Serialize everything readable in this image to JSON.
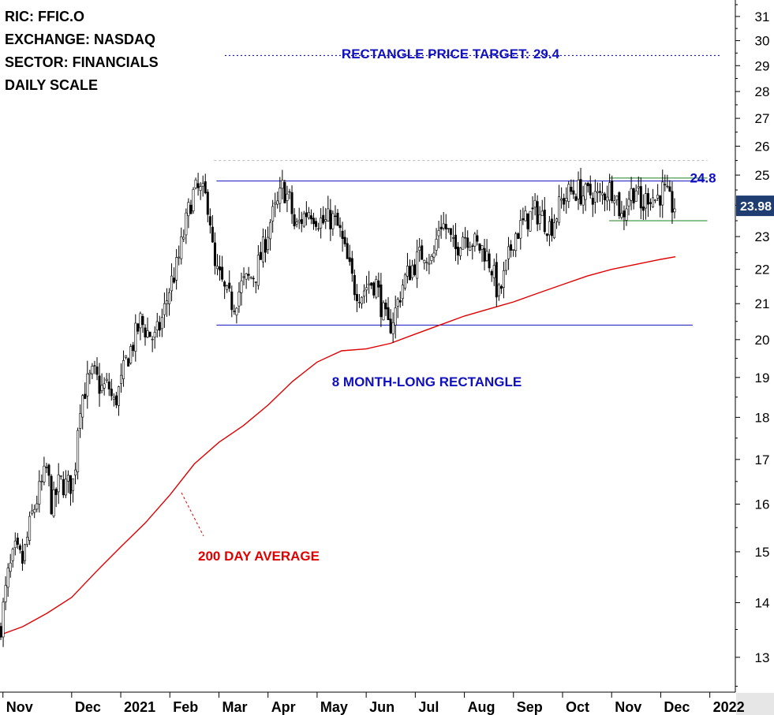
{
  "chart_data": {
    "type": "candlestick",
    "info_lines": [
      "RIC: FFIC.O",
      "EXCHANGE: NASDAQ",
      "SECTOR: FINANCIALS",
      "DAILY SCALE"
    ],
    "y_scale": "log",
    "ylim": [
      12.4,
      31.7
    ],
    "y_ticks": [
      13,
      14,
      15,
      16,
      17,
      18,
      19,
      20,
      21,
      22,
      23,
      24,
      25,
      26,
      27,
      28,
      29,
      30,
      31
    ],
    "x_tick_labels": [
      "Nov",
      "Dec",
      "2021",
      "Feb",
      "Mar",
      "Apr",
      "May",
      "Jun",
      "Jul",
      "Aug",
      "Sep",
      "Oct",
      "Nov",
      "Dec",
      "2022"
    ],
    "x_tick_positions": [
      -0.4,
      1.0,
      2.0,
      3.0,
      4.0,
      5.0,
      6.0,
      7.0,
      8.0,
      9.0,
      10.0,
      11.0,
      12.0,
      13.0,
      14.0
    ],
    "xlim": [
      -0.46,
      14.52
    ],
    "last_price": "23.98",
    "last_price_color": "#1f3d70",
    "colors": {
      "candle": "#000000",
      "average": "#e00000",
      "pattern": "#1010c0",
      "consolidation": "#208020",
      "annotation_blue": "#1010c0",
      "annotation_red": "#e00000"
    },
    "annotations": {
      "target_label": "RECTANGLE PRICE TARGET: 29.4",
      "target_price": 29.4,
      "rectangle_label": "8 MONTH-LONG RECTANGLE",
      "average_label": "200 DAY AVERAGE",
      "resistance_label": "24.8"
    },
    "rectangle": {
      "upper": 24.8,
      "lower": 20.4,
      "x_start": 3.95,
      "x_end": 13.65
    },
    "extra_dashed_level": 25.5,
    "consolidation": {
      "upper": 24.9,
      "lower": 23.5,
      "x_start": 11.95,
      "x_end": 13.95
    },
    "price_path": [
      [
        -0.46,
        13.5
      ],
      [
        -0.3,
        14.5
      ],
      [
        -0.15,
        15.0
      ],
      [
        0.0,
        14.8
      ],
      [
        0.2,
        15.8
      ],
      [
        0.35,
        16.3
      ],
      [
        0.5,
        16.8
      ],
      [
        0.6,
        15.9
      ],
      [
        0.75,
        16.5
      ],
      [
        0.9,
        16.4
      ],
      [
        1.05,
        16.5
      ],
      [
        1.15,
        18.3
      ],
      [
        1.3,
        18.8
      ],
      [
        1.45,
        19.1
      ],
      [
        1.6,
        18.7
      ],
      [
        1.75,
        18.8
      ],
      [
        1.85,
        18.3
      ],
      [
        2.0,
        18.8
      ],
      [
        2.1,
        19.4
      ],
      [
        2.25,
        19.9
      ],
      [
        2.4,
        20.5
      ],
      [
        2.55,
        20.2
      ],
      [
        2.7,
        20.0
      ],
      [
        2.85,
        20.6
      ],
      [
        3.0,
        21.5
      ],
      [
        3.15,
        22.1
      ],
      [
        3.3,
        23.2
      ],
      [
        3.45,
        24.3
      ],
      [
        3.55,
        24.5
      ],
      [
        3.7,
        24.3
      ],
      [
        3.8,
        24.0
      ],
      [
        3.9,
        22.0
      ],
      [
        4.0,
        21.8
      ],
      [
        4.15,
        21.2
      ],
      [
        4.3,
        21.0
      ],
      [
        4.45,
        21.5
      ],
      [
        4.6,
        21.7
      ],
      [
        4.75,
        21.9
      ],
      [
        4.9,
        22.6
      ],
      [
        5.05,
        23.5
      ],
      [
        5.2,
        24.0
      ],
      [
        5.3,
        24.6
      ],
      [
        5.45,
        24.1
      ],
      [
        5.55,
        23.2
      ],
      [
        5.7,
        23.6
      ],
      [
        5.85,
        23.9
      ],
      [
        6.0,
        23.6
      ],
      [
        6.15,
        23.4
      ],
      [
        6.3,
        23.6
      ],
      [
        6.45,
        23.2
      ],
      [
        6.6,
        22.3
      ],
      [
        6.75,
        21.5
      ],
      [
        6.9,
        21.3
      ],
      [
        7.05,
        21.6
      ],
      [
        7.2,
        21.6
      ],
      [
        7.35,
        20.7
      ],
      [
        7.45,
        20.3
      ],
      [
        7.6,
        20.8
      ],
      [
        7.75,
        21.6
      ],
      [
        7.9,
        22.0
      ],
      [
        8.05,
        22.3
      ],
      [
        8.2,
        22.6
      ],
      [
        8.35,
        22.2
      ],
      [
        8.5,
        23.5
      ],
      [
        8.65,
        23.2
      ],
      [
        8.8,
        22.5
      ],
      [
        8.95,
        23.1
      ],
      [
        9.1,
        23.0
      ],
      [
        9.25,
        22.7
      ],
      [
        9.4,
        22.6
      ],
      [
        9.55,
        22.1
      ],
      [
        9.7,
        21.2
      ],
      [
        9.85,
        22.0
      ],
      [
        10.0,
        23.0
      ],
      [
        10.15,
        23.3
      ],
      [
        10.3,
        23.6
      ],
      [
        10.45,
        23.8
      ],
      [
        10.6,
        23.6
      ],
      [
        10.75,
        23.3
      ],
      [
        10.9,
        23.8
      ],
      [
        11.0,
        24.2
      ],
      [
        11.15,
        24.4
      ],
      [
        11.3,
        24.5
      ],
      [
        11.45,
        24.3
      ],
      [
        11.6,
        24.4
      ],
      [
        11.75,
        24.2
      ],
      [
        11.9,
        24.5
      ],
      [
        12.05,
        24.6
      ],
      [
        12.2,
        23.6
      ],
      [
        12.35,
        24.3
      ],
      [
        12.5,
        24.6
      ],
      [
        12.6,
        23.8
      ],
      [
        12.75,
        24.4
      ],
      [
        12.9,
        24.2
      ],
      [
        13.05,
        24.5
      ],
      [
        13.2,
        24.0
      ],
      [
        13.32,
        23.98
      ]
    ],
    "moving_average": [
      [
        -0.46,
        13.4
      ],
      [
        0.0,
        13.55
      ],
      [
        0.5,
        13.8
      ],
      [
        1.0,
        14.1
      ],
      [
        1.5,
        14.6
      ],
      [
        2.0,
        15.1
      ],
      [
        2.5,
        15.6
      ],
      [
        3.0,
        16.2
      ],
      [
        3.5,
        16.9
      ],
      [
        4.0,
        17.4
      ],
      [
        4.5,
        17.8
      ],
      [
        5.0,
        18.3
      ],
      [
        5.5,
        18.9
      ],
      [
        6.0,
        19.4
      ],
      [
        6.5,
        19.7
      ],
      [
        7.0,
        19.75
      ],
      [
        7.5,
        19.9
      ],
      [
        8.0,
        20.15
      ],
      [
        8.5,
        20.4
      ],
      [
        9.0,
        20.65
      ],
      [
        9.5,
        20.85
      ],
      [
        10.0,
        21.05
      ],
      [
        10.5,
        21.3
      ],
      [
        11.0,
        21.55
      ],
      [
        11.5,
        21.8
      ],
      [
        12.0,
        22.0
      ],
      [
        12.5,
        22.15
      ],
      [
        13.0,
        22.3
      ],
      [
        13.3,
        22.38
      ]
    ]
  }
}
